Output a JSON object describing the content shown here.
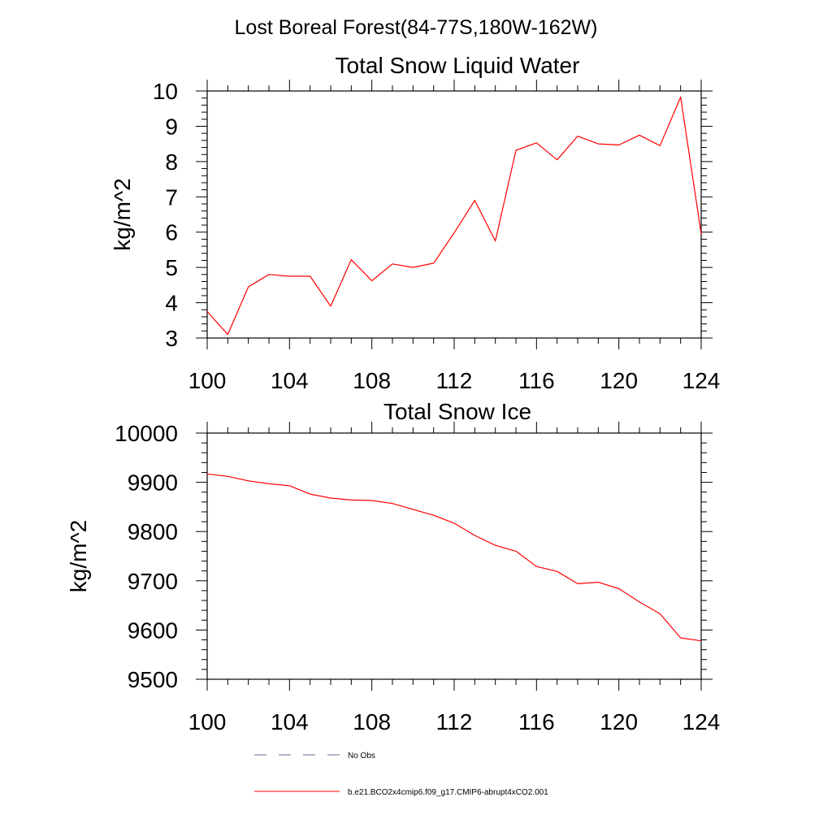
{
  "figure": {
    "main_title": "Lost Boreal Forest(84-77S,180W-162W)"
  },
  "chart_data": [
    {
      "type": "line",
      "title": "Total Snow Liquid Water",
      "ylabel": "kg/m^2",
      "xlabel": "",
      "xlim": [
        100,
        124
      ],
      "ylim": [
        3,
        10
      ],
      "xticks": [
        100,
        104,
        108,
        112,
        116,
        120,
        124
      ],
      "yticks": [
        3,
        4,
        5,
        6,
        7,
        8,
        9,
        10
      ],
      "grid": false,
      "series": [
        {
          "name": "b.e21.BCO2x4cmip6.f09_g17.CMIP6-abrupt4xCO2.001",
          "color": "#ff0000",
          "x": [
            100,
            101,
            102,
            103,
            104,
            105,
            106,
            107,
            108,
            109,
            110,
            111,
            112,
            113,
            114,
            115,
            116,
            117,
            118,
            119,
            120,
            121,
            122,
            123,
            124
          ],
          "y": [
            3.75,
            3.1,
            4.45,
            4.8,
            4.75,
            4.75,
            3.9,
            5.22,
            4.62,
            5.1,
            5.0,
            5.12,
            5.98,
            6.9,
            5.75,
            8.32,
            8.53,
            8.05,
            8.72,
            8.5,
            8.47,
            8.75,
            8.45,
            9.83,
            5.95
          ]
        }
      ]
    },
    {
      "type": "line",
      "title": "Total Snow Ice",
      "ylabel": "kg/m^2",
      "xlabel": "",
      "xlim": [
        100,
        124
      ],
      "ylim": [
        9500,
        10000
      ],
      "xticks": [
        100,
        104,
        108,
        112,
        116,
        120,
        124
      ],
      "yticks": [
        9500,
        9600,
        9700,
        9800,
        9900,
        10000
      ],
      "grid": false,
      "series": [
        {
          "name": "b.e21.BCO2x4cmip6.f09_g17.CMIP6-abrupt4xCO2.001",
          "color": "#ff0000",
          "x": [
            100,
            101,
            102,
            103,
            104,
            105,
            106,
            107,
            108,
            109,
            110,
            111,
            112,
            113,
            114,
            115,
            116,
            117,
            118,
            119,
            120,
            121,
            122,
            123,
            124
          ],
          "y": [
            9917,
            9912,
            9903,
            9897,
            9893,
            9876,
            9868,
            9864,
            9863,
            9857,
            9845,
            9833,
            9817,
            9792,
            9772,
            9760,
            9729,
            9719,
            9694,
            9697,
            9684,
            9657,
            9633,
            9584,
            9578
          ]
        }
      ]
    }
  ],
  "legend": {
    "placement": "bottom",
    "entries": [
      {
        "label": "No Obs",
        "color": "#6a6a9a",
        "style": "dashed"
      },
      {
        "label": "b.e21.BCO2x4cmip6.f09_g17.CMIP6-abrupt4xCO2.001",
        "color": "#ff0000",
        "style": "solid"
      }
    ]
  }
}
